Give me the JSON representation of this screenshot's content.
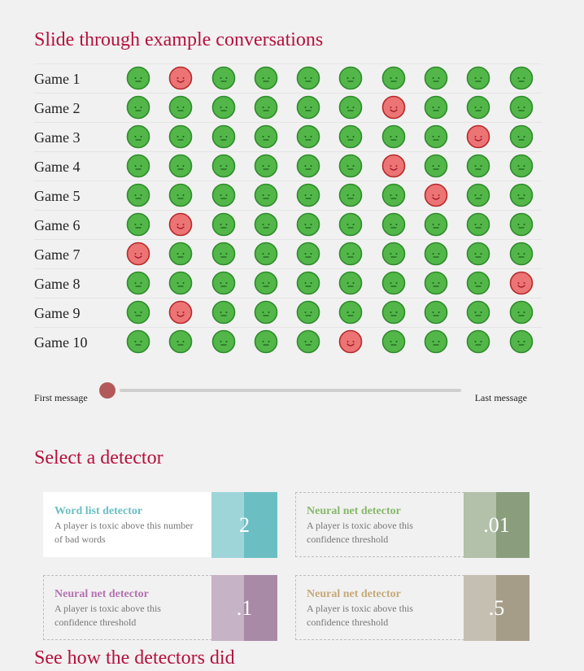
{
  "sections": {
    "slide_title": "Slide through example conversations",
    "detector_title": "Select a detector",
    "results_title": "See how the detectors did"
  },
  "games": [
    {
      "label": "Game 1",
      "faces": [
        "g",
        "r",
        "g",
        "g",
        "g",
        "g",
        "g",
        "g",
        "g",
        "g"
      ]
    },
    {
      "label": "Game 2",
      "faces": [
        "g",
        "g",
        "g",
        "g",
        "g",
        "g",
        "r",
        "g",
        "g",
        "g"
      ]
    },
    {
      "label": "Game 3",
      "faces": [
        "g",
        "g",
        "g",
        "g",
        "g",
        "g",
        "g",
        "g",
        "r",
        "g"
      ]
    },
    {
      "label": "Game 4",
      "faces": [
        "g",
        "g",
        "g",
        "g",
        "g",
        "g",
        "r",
        "g",
        "g",
        "g"
      ]
    },
    {
      "label": "Game 5",
      "faces": [
        "g",
        "g",
        "g",
        "g",
        "g",
        "g",
        "g",
        "r",
        "g",
        "g"
      ]
    },
    {
      "label": "Game 6",
      "faces": [
        "g",
        "r",
        "g",
        "g",
        "g",
        "g",
        "g",
        "g",
        "g",
        "g"
      ]
    },
    {
      "label": "Game 7",
      "faces": [
        "r",
        "g",
        "g",
        "g",
        "g",
        "g",
        "g",
        "g",
        "g",
        "g"
      ]
    },
    {
      "label": "Game 8",
      "faces": [
        "g",
        "g",
        "g",
        "g",
        "g",
        "g",
        "g",
        "g",
        "g",
        "r"
      ]
    },
    {
      "label": "Game 9",
      "faces": [
        "g",
        "r",
        "g",
        "g",
        "g",
        "g",
        "g",
        "g",
        "g",
        "g"
      ]
    },
    {
      "label": "Game 10",
      "faces": [
        "g",
        "g",
        "g",
        "g",
        "g",
        "r",
        "g",
        "g",
        "g",
        "g"
      ]
    }
  ],
  "face_colors": {
    "green_fill": "#52b748",
    "green_stroke": "#2f8a2c",
    "red_fill": "#ec7474",
    "red_stroke": "#b52a2a",
    "feature": "#1e5e1f",
    "feature_red": "#a11d2a"
  },
  "slider": {
    "left_label": "First message",
    "right_label": "Last message",
    "position": 0
  },
  "detectors": [
    {
      "title": "Word list detector",
      "desc": "A player is toxic above this number of bad words",
      "value": "2",
      "color": "#6bbfc3",
      "title_color": "#6bbfc3",
      "selected": true
    },
    {
      "title": "Neural net detector",
      "desc": "A player is toxic above this confidence threshold",
      "value": ".01",
      "color": "#8a9e7d",
      "title_color": "#86b86b",
      "selected": false
    },
    {
      "title": "Neural net detector",
      "desc": "A player is toxic above this confidence threshold",
      "value": ".1",
      "color": "#a88aa6",
      "title_color": "#b572b0",
      "selected": false
    },
    {
      "title": "Neural net detector",
      "desc": "A player is toxic above this confidence threshold",
      "value": ".5",
      "color": "#a69d89",
      "title_color": "#c5a97a",
      "selected": false
    }
  ]
}
